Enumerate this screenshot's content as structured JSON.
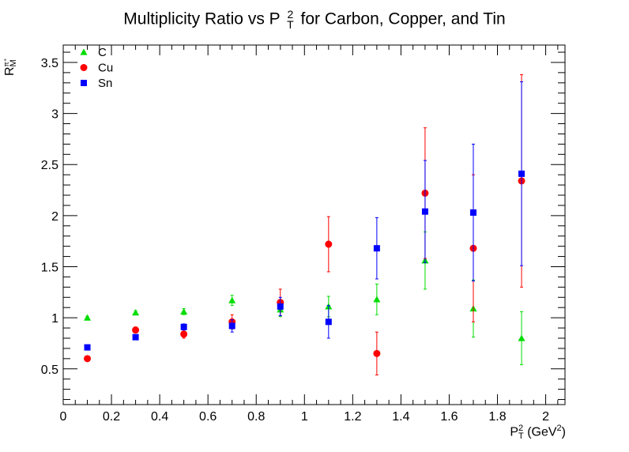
{
  "chart_data": {
    "type": "scatter",
    "title_parts": {
      "pre": "Multiplicity Ratio vs P",
      "sup": "2",
      "sub": "T",
      "post": " for Carbon, Copper, and Tin"
    },
    "ylabel_parts": {
      "base": "R",
      "sup": "π⁺",
      "sub": "M"
    },
    "xlabel_parts": {
      "base": "P",
      "sup": "2",
      "sub": "T",
      "unit": " (GeV",
      "unit_sup": "2",
      "close": ")"
    },
    "xlim": [
      0,
      2.08
    ],
    "ylim": [
      0.15,
      3.67
    ],
    "x_ticks": [
      "0",
      "0.2",
      "0.4",
      "0.6",
      "0.8",
      "1",
      "1.2",
      "1.4",
      "1.6",
      "1.8",
      "2"
    ],
    "y_ticks": [
      "0.5",
      "1",
      "1.5",
      "2",
      "2.5",
      "3",
      "3.5"
    ],
    "legend_position": "top-left",
    "series": [
      {
        "name": "C",
        "color": "#00dd00",
        "marker": "triangle",
        "points": [
          {
            "x": 0.1,
            "y": 1.0,
            "err": 0.015
          },
          {
            "x": 0.3,
            "y": 1.05,
            "err": 0.02
          },
          {
            "x": 0.5,
            "y": 1.06,
            "err": 0.03
          },
          {
            "x": 0.7,
            "y": 1.17,
            "err": 0.05
          },
          {
            "x": 0.9,
            "y": 1.08,
            "err": 0.07
          },
          {
            "x": 1.1,
            "y": 1.11,
            "err": 0.1
          },
          {
            "x": 1.3,
            "y": 1.18,
            "err": 0.15
          },
          {
            "x": 1.5,
            "y": 1.56,
            "err": 0.28
          },
          {
            "x": 1.7,
            "y": 1.09,
            "err": 0.28
          },
          {
            "x": 1.9,
            "y": 0.8,
            "err": 0.26
          }
        ]
      },
      {
        "name": "Cu",
        "color": "#ff0000",
        "marker": "circle",
        "points": [
          {
            "x": 0.1,
            "y": 0.6,
            "err": 0.02
          },
          {
            "x": 0.3,
            "y": 0.88,
            "err": 0.03
          },
          {
            "x": 0.5,
            "y": 0.84,
            "err": 0.04
          },
          {
            "x": 0.7,
            "y": 0.96,
            "err": 0.07
          },
          {
            "x": 0.9,
            "y": 1.15,
            "err": 0.13
          },
          {
            "x": 1.1,
            "y": 1.72,
            "err": 0.27
          },
          {
            "x": 1.3,
            "y": 0.65,
            "err": 0.21
          },
          {
            "x": 1.5,
            "y": 2.22,
            "err": 0.64
          },
          {
            "x": 1.7,
            "y": 1.68,
            "err": 0.72
          },
          {
            "x": 1.9,
            "y": 2.34,
            "err": 1.04
          }
        ]
      },
      {
        "name": "Sn",
        "color": "#0000ff",
        "marker": "square",
        "points": [
          {
            "x": 0.1,
            "y": 0.71,
            "err": 0.015
          },
          {
            "x": 0.3,
            "y": 0.81,
            "err": 0.025
          },
          {
            "x": 0.5,
            "y": 0.91,
            "err": 0.03
          },
          {
            "x": 0.7,
            "y": 0.92,
            "err": 0.06
          },
          {
            "x": 0.9,
            "y": 1.11,
            "err": 0.09
          },
          {
            "x": 1.1,
            "y": 0.96,
            "err": 0.16
          },
          {
            "x": 1.3,
            "y": 1.68,
            "err": 0.3
          },
          {
            "x": 1.5,
            "y": 2.04,
            "err": 0.5
          },
          {
            "x": 1.7,
            "y": 2.03,
            "err": 0.67
          },
          {
            "x": 1.9,
            "y": 2.41,
            "err": 0.9
          }
        ]
      }
    ]
  }
}
